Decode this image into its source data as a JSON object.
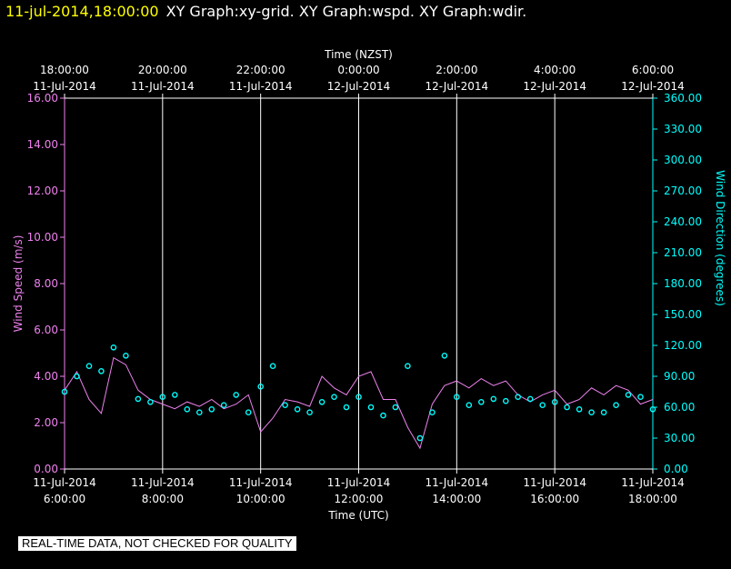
{
  "header": {
    "timestamp": "11-jul-2014,18:00:00",
    "graphs": "XY Graph:xy-grid.  XY Graph:wspd.  XY Graph:wdir."
  },
  "footer_note": "REAL-TIME DATA, NOT CHECKED FOR QUALITY",
  "colors": {
    "speed": "#ee82ee",
    "direction": "#00ffff",
    "grid": "#ffffff",
    "axis_text": "#ffffff"
  },
  "chart_data": {
    "type": "line",
    "top_axis": {
      "title": "Time (NZST)",
      "ticks": [
        {
          "time": "18:00:00",
          "date": "11-Jul-2014"
        },
        {
          "time": "20:00:00",
          "date": "11-Jul-2014"
        },
        {
          "time": "22:00:00",
          "date": "11-Jul-2014"
        },
        {
          "time": "0:00:00",
          "date": "12-Jul-2014"
        },
        {
          "time": "2:00:00",
          "date": "12-Jul-2014"
        },
        {
          "time": "4:00:00",
          "date": "12-Jul-2014"
        },
        {
          "time": "6:00:00",
          "date": "12-Jul-2014"
        }
      ]
    },
    "bottom_axis": {
      "title": "Time (UTC)",
      "ticks": [
        {
          "date": "11-Jul-2014",
          "time": "6:00:00"
        },
        {
          "date": "11-Jul-2014",
          "time": "8:00:00"
        },
        {
          "date": "11-Jul-2014",
          "time": "10:00:00"
        },
        {
          "date": "11-Jul-2014",
          "time": "12:00:00"
        },
        {
          "date": "11-Jul-2014",
          "time": "14:00:00"
        },
        {
          "date": "11-Jul-2014",
          "time": "16:00:00"
        },
        {
          "date": "11-Jul-2014",
          "time": "18:00:00"
        }
      ],
      "xlim": [
        6,
        18
      ]
    },
    "left_axis": {
      "title": "Wind Speed (m/s)",
      "ylim": [
        0,
        16
      ],
      "ticks": [
        "0.00",
        "2.00",
        "4.00",
        "6.00",
        "8.00",
        "10.00",
        "12.00",
        "14.00",
        "16.00"
      ]
    },
    "right_axis": {
      "title": "Wind Direction (degrees)",
      "ylim": [
        0,
        360
      ],
      "ticks": [
        "0.00",
        "30.00",
        "60.00",
        "90.00",
        "120.00",
        "150.00",
        "180.00",
        "210.00",
        "240.00",
        "270.00",
        "300.00",
        "330.00",
        "360.00"
      ]
    },
    "grid": "vertical",
    "series": [
      {
        "key": "speed",
        "axis": "left",
        "style": "line",
        "x": [
          6.0,
          6.25,
          6.5,
          6.75,
          7.0,
          7.25,
          7.5,
          7.75,
          8.0,
          8.25,
          8.5,
          8.75,
          9.0,
          9.25,
          9.5,
          9.75,
          10.0,
          10.25,
          10.5,
          10.75,
          11.0,
          11.25,
          11.5,
          11.75,
          12.0,
          12.25,
          12.5,
          12.75,
          13.0,
          13.25,
          13.5,
          13.75,
          14.0,
          14.25,
          14.5,
          14.75,
          15.0,
          15.25,
          15.5,
          15.75,
          16.0,
          16.25,
          16.5,
          16.75,
          17.0,
          17.25,
          17.5,
          17.75,
          18.0
        ],
        "values": [
          3.4,
          4.2,
          3.0,
          2.4,
          4.8,
          4.5,
          3.4,
          3.0,
          2.8,
          2.6,
          2.9,
          2.7,
          3.0,
          2.6,
          2.8,
          3.2,
          1.6,
          2.2,
          3.0,
          2.9,
          2.7,
          4.0,
          3.5,
          3.2,
          4.0,
          4.2,
          3.0,
          3.0,
          1.8,
          0.9,
          2.8,
          3.6,
          3.8,
          3.5,
          3.9,
          3.6,
          3.8,
          3.2,
          2.9,
          3.2,
          3.4,
          2.8,
          3.0,
          3.5,
          3.2,
          3.6,
          3.4,
          2.8,
          3.0
        ]
      },
      {
        "key": "direction",
        "axis": "right",
        "style": "points",
        "x": [
          6.0,
          6.25,
          6.5,
          6.75,
          7.0,
          7.25,
          7.5,
          7.75,
          8.0,
          8.25,
          8.5,
          8.75,
          9.0,
          9.25,
          9.5,
          9.75,
          10.0,
          10.25,
          10.5,
          10.75,
          11.0,
          11.25,
          11.5,
          11.75,
          12.0,
          12.25,
          12.5,
          12.75,
          13.0,
          13.25,
          13.5,
          13.75,
          14.0,
          14.25,
          14.5,
          14.75,
          15.0,
          15.25,
          15.5,
          15.75,
          16.0,
          16.25,
          16.5,
          16.75,
          17.0,
          17.25,
          17.5,
          17.75,
          18.0
        ],
        "values": [
          75,
          90,
          100,
          95,
          118,
          110,
          68,
          65,
          70,
          72,
          58,
          55,
          58,
          62,
          72,
          55,
          80,
          100,
          62,
          58,
          55,
          65,
          70,
          60,
          70,
          60,
          52,
          60,
          100,
          30,
          55,
          110,
          70,
          62,
          65,
          68,
          66,
          70,
          68,
          62,
          65,
          60,
          58,
          55,
          55,
          62,
          72,
          70,
          58
        ]
      }
    ]
  }
}
